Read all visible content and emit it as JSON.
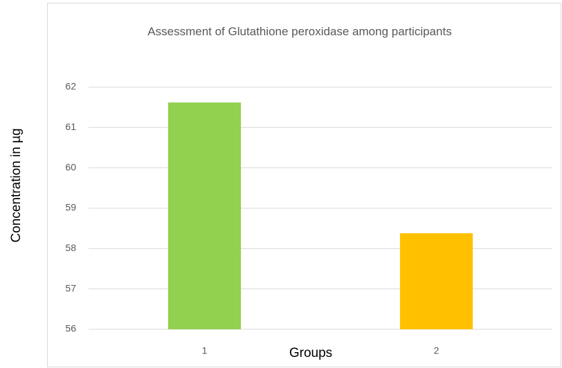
{
  "chart_data": {
    "type": "bar",
    "title": "Assessment of Glutathione peroxidase among participants",
    "x_label": "Groups",
    "y_label": "Concentration in µg",
    "categories": [
      "1",
      "2"
    ],
    "values": [
      61.62,
      58.38
    ],
    "colors": [
      "#92d050",
      "#ffc000"
    ],
    "ylim": [
      56,
      62
    ],
    "yticks": [
      56,
      57,
      58,
      59,
      60,
      61,
      62
    ],
    "grid": true
  }
}
